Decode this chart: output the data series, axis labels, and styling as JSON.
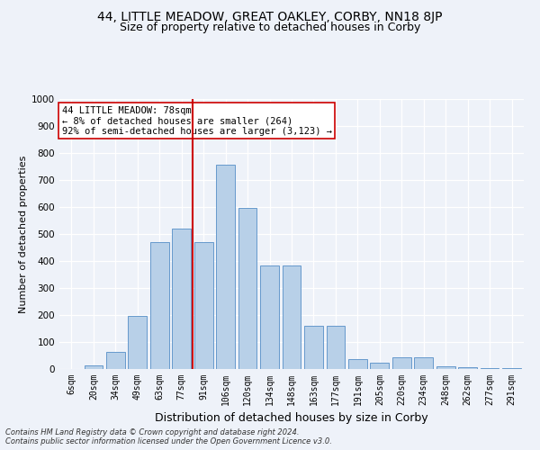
{
  "title": "44, LITTLE MEADOW, GREAT OAKLEY, CORBY, NN18 8JP",
  "subtitle": "Size of property relative to detached houses in Corby",
  "xlabel": "Distribution of detached houses by size in Corby",
  "ylabel": "Number of detached properties",
  "categories": [
    "6sqm",
    "20sqm",
    "34sqm",
    "49sqm",
    "63sqm",
    "77sqm",
    "91sqm",
    "106sqm",
    "120sqm",
    "134sqm",
    "148sqm",
    "163sqm",
    "177sqm",
    "191sqm",
    "205sqm",
    "220sqm",
    "234sqm",
    "248sqm",
    "262sqm",
    "277sqm",
    "291sqm"
  ],
  "values": [
    0,
    12,
    62,
    197,
    470,
    520,
    470,
    757,
    597,
    383,
    383,
    160,
    160,
    38,
    25,
    42,
    42,
    10,
    7,
    5,
    3
  ],
  "bar_color": "#b8d0e8",
  "bar_edge_color": "#6699cc",
  "vline_color": "#cc0000",
  "vline_pos": 5.5,
  "annotation_text": "44 LITTLE MEADOW: 78sqm\n← 8% of detached houses are smaller (264)\n92% of semi-detached houses are larger (3,123) →",
  "annotation_box_color": "#ffffff",
  "annotation_box_edge": "#cc0000",
  "background_color": "#eef2f9",
  "grid_color": "#ffffff",
  "footer1": "Contains HM Land Registry data © Crown copyright and database right 2024.",
  "footer2": "Contains public sector information licensed under the Open Government Licence v3.0.",
  "ylim": [
    0,
    1000
  ],
  "title_fontsize": 10,
  "subtitle_fontsize": 9,
  "xlabel_fontsize": 9,
  "ylabel_fontsize": 8,
  "tick_fontsize": 7,
  "annotation_fontsize": 7.5,
  "footer_fontsize": 6
}
